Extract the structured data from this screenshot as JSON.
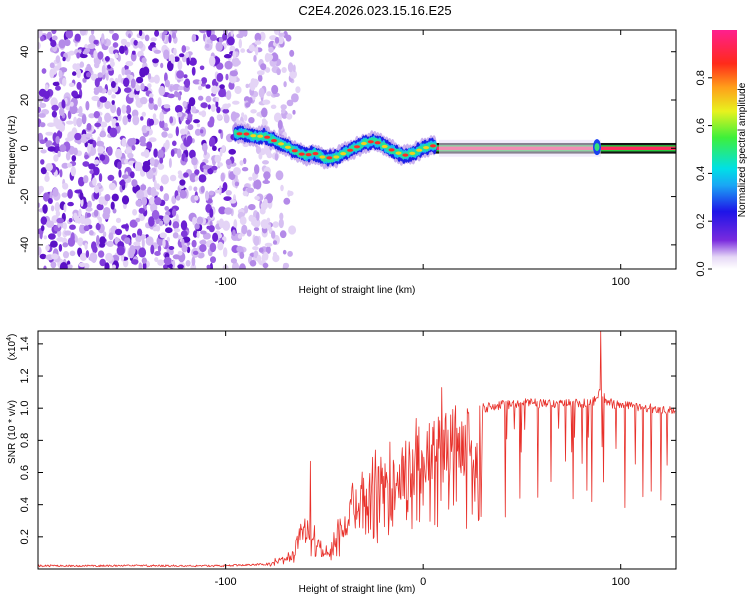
{
  "title": "C2E4.2026.023.15.16.E25",
  "chart_data": [
    {
      "type": "heatmap",
      "xlabel": "Height of straight line (km)",
      "ylabel": "Frequency (Hz)",
      "xlim": [
        -195,
        128
      ],
      "ylim": [
        -50,
        49
      ],
      "x_ticks": [
        -100,
        0,
        100
      ],
      "x_tick_labels": [
        "-100",
        "",
        "100"
      ],
      "y_ticks": [
        -40,
        -20,
        0,
        20,
        40
      ],
      "y_tick_labels": [
        "-40",
        "-20",
        "0",
        "20",
        "40"
      ],
      "noise_region_x": [
        -195,
        -80
      ],
      "ridge": {
        "description": "frequency ridge of maximum spectral amplitude",
        "x": [
          -95,
          -90,
          -85,
          -80,
          -75,
          -70,
          -65,
          -60,
          -55,
          -50,
          -45,
          -40,
          -35,
          -30,
          -25,
          -22,
          -18,
          -15,
          -10,
          -5,
          0,
          5,
          10,
          20,
          40,
          60,
          80,
          88,
          100,
          128
        ],
        "y": [
          6,
          6,
          5,
          5,
          3,
          1,
          -1,
          -3,
          -2,
          -4,
          -4,
          -2,
          0,
          2,
          3,
          2,
          0,
          -1,
          -3,
          -2,
          0,
          1,
          1,
          0,
          0,
          0,
          0,
          0,
          0,
          0
        ]
      },
      "colorbar": {
        "label": "Normalized spectral amplitude",
        "range": [
          0.0,
          1.0
        ],
        "ticks": [
          0.0,
          0.2,
          0.4,
          0.6,
          0.8
        ],
        "tick_labels": [
          "0.0",
          "0.2",
          "0.4",
          "0.6",
          "0.8"
        ]
      }
    },
    {
      "type": "line",
      "xlabel": "Height of straight line (km)",
      "ylabel": "SNR (10 * v/v)",
      "y_multiplier": "(x10",
      "y_multiplier_exp": "4",
      "y_multiplier_close": ")",
      "xlim": [
        -195,
        128
      ],
      "ylim": [
        0,
        1.48
      ],
      "x_ticks": [
        -100,
        0,
        100
      ],
      "x_tick_labels": [
        "-100",
        "0",
        "100"
      ],
      "y_ticks": [
        0.2,
        0.4,
        0.6,
        0.8,
        1.0,
        1.2,
        1.4
      ],
      "y_tick_labels": [
        "0.2",
        "0.4",
        "0.6",
        "0.8",
        "1.0",
        "1.2",
        "1.4"
      ],
      "series": [
        {
          "name": "SNR",
          "color": "#e8302a",
          "envelope_x": [
            -195,
            -150,
            -100,
            -80,
            -70,
            -65,
            -60,
            -55,
            -50,
            -45,
            -40,
            -35,
            -30,
            -25,
            -20,
            -15,
            -10,
            -5,
            0,
            5,
            10,
            15,
            20,
            30,
            40,
            50,
            60,
            70,
            80,
            88,
            90,
            92,
            95,
            100,
            110,
            120,
            128
          ],
          "envelope_y": [
            0.02,
            0.02,
            0.02,
            0.03,
            0.08,
            0.15,
            0.35,
            0.25,
            0.12,
            0.22,
            0.35,
            0.45,
            0.55,
            0.6,
            0.65,
            0.7,
            0.75,
            0.8,
            0.85,
            0.9,
            0.92,
            0.95,
            0.98,
            1.0,
            1.02,
            1.03,
            1.03,
            1.03,
            1.03,
            1.05,
            1.12,
            1.05,
            1.03,
            1.02,
            1.0,
            1.0,
            0.98
          ]
        }
      ],
      "annotations": [
        {
          "x": -57,
          "y": 0.67
        },
        {
          "x": 90,
          "y": 1.48
        }
      ]
    }
  ]
}
